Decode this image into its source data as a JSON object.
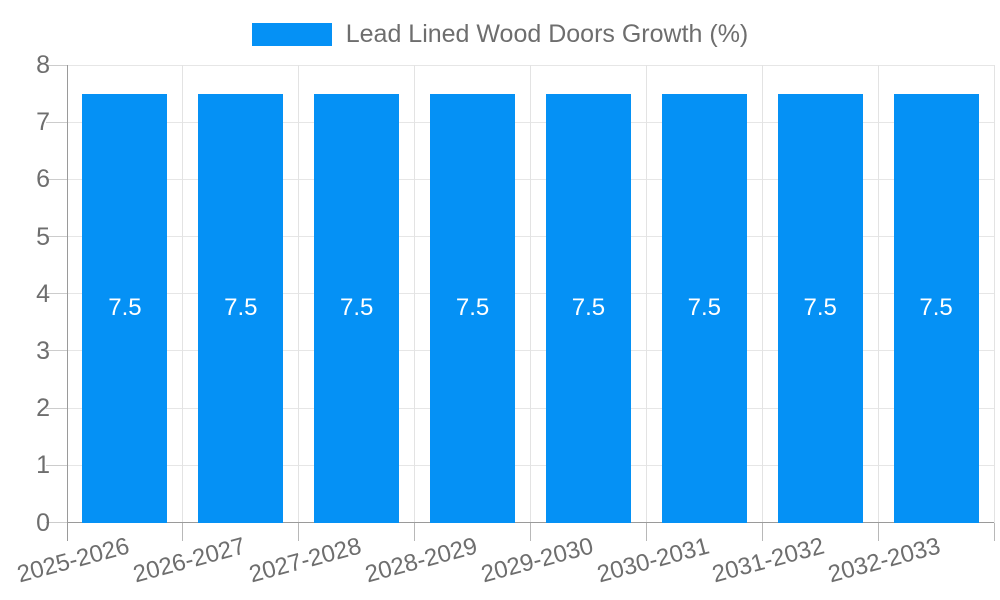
{
  "legend": {
    "label": "Lead Lined Wood Doors Growth (%)"
  },
  "chart_data": {
    "type": "bar",
    "title": "Lead Lined Wood Doors Growth (%)",
    "categories": [
      "2025-2026",
      "2026-2027",
      "2027-2028",
      "2028-2029",
      "2029-2030",
      "2030-2031",
      "2031-2032",
      "2032-2033"
    ],
    "values": [
      7.5,
      7.5,
      7.5,
      7.5,
      7.5,
      7.5,
      7.5,
      7.5
    ],
    "bar_labels": [
      "7.5",
      "7.5",
      "7.5",
      "7.5",
      "7.5",
      "7.5",
      "7.5",
      "7.5"
    ],
    "xlabel": "",
    "ylabel": "",
    "ylim": [
      0,
      8
    ],
    "yticks": [
      0,
      1,
      2,
      3,
      4,
      5,
      6,
      7,
      8
    ],
    "ytick_labels": [
      "0",
      "1",
      "2",
      "3",
      "4",
      "5",
      "6",
      "7",
      "8"
    ],
    "grid": true,
    "legend_position": "top-center",
    "colors": {
      "bar": "#0591f5",
      "bar_label": "#ffffff",
      "legend_text": "#6e6e6e",
      "axis_text": "#6e6e6e",
      "grid_line": "#e6e6e6",
      "vgrid_line": "#e3e3e3",
      "tick_line": "#cccccc",
      "xtick_line": "#b8b8b8",
      "axis_line": "#9a9a9a"
    }
  }
}
